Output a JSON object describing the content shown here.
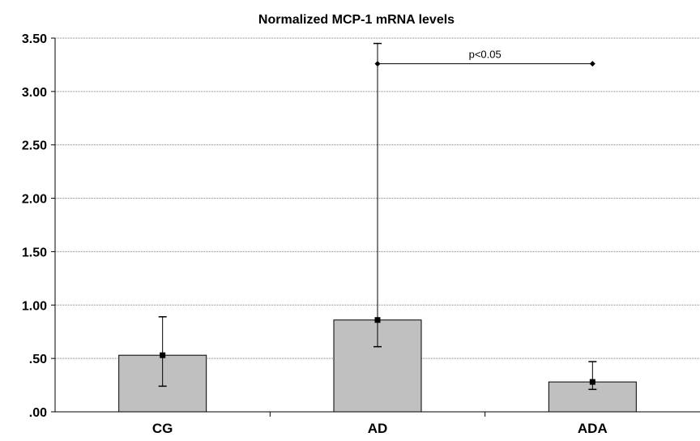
{
  "chart_data": {
    "type": "bar",
    "title": "Normalized MCP-1 mRNA levels",
    "xlabel": "",
    "ylabel": "",
    "categories": [
      "CG",
      "AD",
      "ADA"
    ],
    "values": [
      0.53,
      0.86,
      0.28
    ],
    "error_bars": {
      "upper": [
        0.89,
        3.45,
        0.47
      ],
      "lower": [
        0.24,
        0.61,
        0.21
      ]
    },
    "ylim": [
      0,
      3.5
    ],
    "yticks": [
      0,
      0.5,
      1.0,
      1.5,
      2.0,
      2.5,
      3.0,
      3.5
    ],
    "ytick_labels": [
      ".00",
      ".50",
      "1.00",
      "1.50",
      "2.00",
      "2.50",
      "3.00",
      "3.50"
    ],
    "grid": true,
    "significance": {
      "label": "p<0.05",
      "from_category": "AD",
      "to_category": "ADA",
      "y": 3.26
    },
    "colors": {
      "bar_fill": "#c0c0c0",
      "bar_stroke": "#000000",
      "grid": "#808080"
    }
  }
}
